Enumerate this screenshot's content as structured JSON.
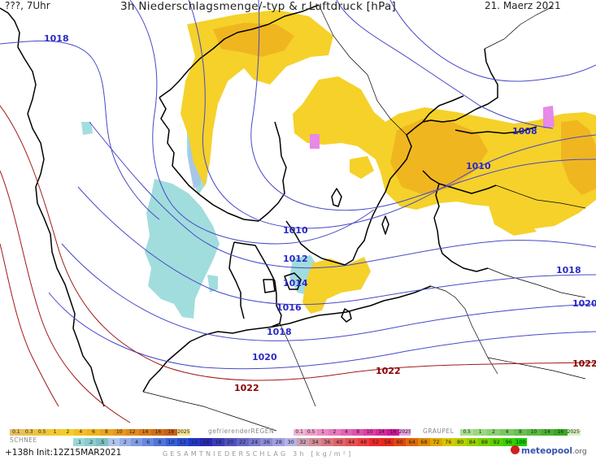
{
  "header": {
    "left": "???, 7Uhr",
    "title": "3h Niederschlagsmenge/-typ & r.Luftdruck [hPa]",
    "date": "21. Maerz 2021"
  },
  "isobars": [
    {
      "text": "1018"
    },
    {
      "text": "1008"
    },
    {
      "text": "1010"
    },
    {
      "text": "1010"
    },
    {
      "text": "1012"
    },
    {
      "text": "1014"
    },
    {
      "text": "1016"
    },
    {
      "text": "1018"
    },
    {
      "text": "1018"
    },
    {
      "text": "1020"
    },
    {
      "text": "1020"
    },
    {
      "text": "1022"
    },
    {
      "text": "1022"
    },
    {
      "text": "1022"
    }
  ],
  "legend": {
    "rain_values": [
      "0.1",
      "0.3",
      "0.5",
      "1",
      "2",
      "4",
      "6",
      "8",
      "10",
      "12",
      "14",
      "16",
      "18",
      "2025+"
    ],
    "freezing_label": "gefrierenderREGEN",
    "freezing_values": [
      "0.1",
      "0.5",
      "1",
      "2",
      "4",
      "8",
      "10",
      "14",
      "16",
      "2025+"
    ],
    "graupel_label": "GRAUPEL",
    "graupel_values": [
      "0.5",
      "1",
      "2",
      "4",
      "8",
      "10",
      "14",
      "16",
      "2025+"
    ],
    "snow_label": "SCHNEE",
    "snow_values": [
      ".1",
      ".2",
      ".5",
      "1",
      "2",
      "4",
      "6",
      "8",
      "10",
      "12",
      "14"
    ],
    "total_values": [
      "16",
      "18",
      "20",
      "22",
      "24",
      "26",
      "28",
      "30",
      "32",
      "34",
      "36",
      "40",
      "44",
      "48",
      "52",
      "56",
      "60",
      "64",
      "68",
      "72",
      "76",
      "80",
      "84",
      "88",
      "92",
      "96",
      "100"
    ],
    "total_label": "GESAMTNIEDERSCHLAG 3h [kg/m²]",
    "init": "+138h Init:12Z15MAR2021",
    "logo_main": "meteopool",
    "logo_tld": ".org"
  }
}
